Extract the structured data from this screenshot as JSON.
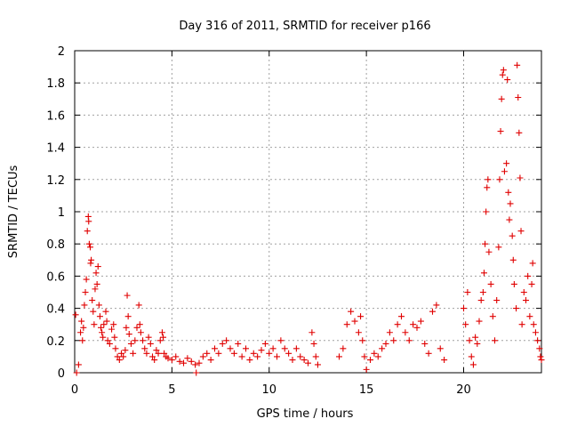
{
  "chart_data": {
    "type": "scatter",
    "title": "Day 316 of 2011, SRMTID for receiver p166",
    "xlabel": "GPS time / hours",
    "ylabel": "SRMTID / TECUs",
    "xlim": [
      0,
      24
    ],
    "ylim": [
      0,
      2
    ],
    "xticks": [
      0,
      5,
      10,
      15,
      20
    ],
    "yticks": [
      0,
      0.2,
      0.4,
      0.6,
      0.8,
      1,
      1.2,
      1.4,
      1.6,
      1.8,
      2
    ],
    "grid": true,
    "marker": "plus",
    "color": "#e00000",
    "series": [
      {
        "name": "SRMTID",
        "points": [
          [
            0.05,
            0.36
          ],
          [
            0.1,
            0.0
          ],
          [
            0.2,
            0.05
          ],
          [
            0.3,
            0.25
          ],
          [
            0.35,
            0.32
          ],
          [
            0.4,
            0.2
          ],
          [
            0.45,
            0.28
          ],
          [
            0.5,
            0.42
          ],
          [
            0.55,
            0.5
          ],
          [
            0.6,
            0.58
          ],
          [
            0.65,
            0.88
          ],
          [
            0.7,
            0.97
          ],
          [
            0.72,
            0.94
          ],
          [
            0.75,
            0.8
          ],
          [
            0.8,
            0.78
          ],
          [
            0.82,
            0.68
          ],
          [
            0.85,
            0.7
          ],
          [
            0.9,
            0.45
          ],
          [
            0.95,
            0.38
          ],
          [
            1.0,
            0.3
          ],
          [
            1.05,
            0.52
          ],
          [
            1.1,
            0.62
          ],
          [
            1.15,
            0.55
          ],
          [
            1.2,
            0.66
          ],
          [
            1.25,
            0.42
          ],
          [
            1.3,
            0.35
          ],
          [
            1.35,
            0.28
          ],
          [
            1.4,
            0.25
          ],
          [
            1.45,
            0.22
          ],
          [
            1.5,
            0.3
          ],
          [
            1.6,
            0.38
          ],
          [
            1.65,
            0.32
          ],
          [
            1.7,
            0.2
          ],
          [
            1.8,
            0.18
          ],
          [
            1.9,
            0.27
          ],
          [
            2.0,
            0.3
          ],
          [
            2.05,
            0.22
          ],
          [
            2.1,
            0.15
          ],
          [
            2.2,
            0.1
          ],
          [
            2.3,
            0.08
          ],
          [
            2.4,
            0.12
          ],
          [
            2.5,
            0.1
          ],
          [
            2.6,
            0.14
          ],
          [
            2.65,
            0.28
          ],
          [
            2.7,
            0.48
          ],
          [
            2.75,
            0.35
          ],
          [
            2.8,
            0.24
          ],
          [
            2.9,
            0.18
          ],
          [
            3.0,
            0.12
          ],
          [
            3.1,
            0.2
          ],
          [
            3.2,
            0.28
          ],
          [
            3.3,
            0.42
          ],
          [
            3.35,
            0.3
          ],
          [
            3.4,
            0.25
          ],
          [
            3.5,
            0.2
          ],
          [
            3.6,
            0.15
          ],
          [
            3.7,
            0.12
          ],
          [
            3.8,
            0.22
          ],
          [
            3.9,
            0.18
          ],
          [
            4.0,
            0.1
          ],
          [
            4.1,
            0.08
          ],
          [
            4.2,
            0.14
          ],
          [
            4.3,
            0.12
          ],
          [
            4.4,
            0.2
          ],
          [
            4.5,
            0.25
          ],
          [
            4.55,
            0.22
          ],
          [
            4.6,
            0.12
          ],
          [
            4.7,
            0.1
          ],
          [
            4.8,
            0.09
          ],
          [
            5.0,
            0.08
          ],
          [
            5.2,
            0.1
          ],
          [
            5.4,
            0.07
          ],
          [
            5.6,
            0.06
          ],
          [
            5.8,
            0.09
          ],
          [
            6.0,
            0.07
          ],
          [
            6.2,
            0.05
          ],
          [
            6.25,
            0.0
          ],
          [
            6.4,
            0.06
          ],
          [
            6.6,
            0.1
          ],
          [
            6.8,
            0.12
          ],
          [
            7.0,
            0.08
          ],
          [
            7.2,
            0.15
          ],
          [
            7.4,
            0.12
          ],
          [
            7.6,
            0.18
          ],
          [
            7.8,
            0.2
          ],
          [
            8.0,
            0.15
          ],
          [
            8.2,
            0.12
          ],
          [
            8.4,
            0.18
          ],
          [
            8.6,
            0.1
          ],
          [
            8.8,
            0.15
          ],
          [
            9.0,
            0.08
          ],
          [
            9.2,
            0.12
          ],
          [
            9.4,
            0.1
          ],
          [
            9.6,
            0.14
          ],
          [
            9.8,
            0.18
          ],
          [
            10.0,
            0.12
          ],
          [
            10.2,
            0.15
          ],
          [
            10.4,
            0.1
          ],
          [
            10.6,
            0.2
          ],
          [
            10.8,
            0.15
          ],
          [
            11.0,
            0.12
          ],
          [
            11.2,
            0.08
          ],
          [
            11.4,
            0.15
          ],
          [
            11.6,
            0.1
          ],
          [
            11.8,
            0.08
          ],
          [
            12.0,
            0.06
          ],
          [
            12.2,
            0.25
          ],
          [
            12.3,
            0.18
          ],
          [
            12.4,
            0.1
          ],
          [
            12.5,
            0.05
          ],
          [
            13.6,
            0.1
          ],
          [
            13.8,
            0.15
          ],
          [
            14.0,
            0.3
          ],
          [
            14.2,
            0.38
          ],
          [
            14.4,
            0.32
          ],
          [
            14.6,
            0.25
          ],
          [
            14.7,
            0.35
          ],
          [
            14.8,
            0.2
          ],
          [
            14.9,
            0.1
          ],
          [
            15.0,
            0.02
          ],
          [
            15.2,
            0.08
          ],
          [
            15.4,
            0.12
          ],
          [
            15.6,
            0.1
          ],
          [
            15.8,
            0.15
          ],
          [
            16.0,
            0.18
          ],
          [
            16.2,
            0.25
          ],
          [
            16.4,
            0.2
          ],
          [
            16.6,
            0.3
          ],
          [
            16.8,
            0.35
          ],
          [
            17.0,
            0.25
          ],
          [
            17.2,
            0.2
          ],
          [
            17.4,
            0.3
          ],
          [
            17.6,
            0.28
          ],
          [
            17.8,
            0.32
          ],
          [
            18.0,
            0.18
          ],
          [
            18.2,
            0.12
          ],
          [
            18.4,
            0.38
          ],
          [
            18.6,
            0.42
          ],
          [
            18.8,
            0.15
          ],
          [
            19.0,
            0.08
          ],
          [
            20.0,
            0.4
          ],
          [
            20.1,
            0.3
          ],
          [
            20.2,
            0.5
          ],
          [
            20.3,
            0.2
          ],
          [
            20.4,
            0.1
          ],
          [
            20.5,
            0.05
          ],
          [
            20.6,
            0.22
          ],
          [
            20.7,
            0.18
          ],
          [
            20.8,
            0.32
          ],
          [
            20.9,
            0.45
          ],
          [
            21.0,
            0.5
          ],
          [
            21.05,
            0.62
          ],
          [
            21.1,
            0.8
          ],
          [
            21.15,
            1.0
          ],
          [
            21.2,
            1.15
          ],
          [
            21.25,
            1.2
          ],
          [
            21.3,
            0.75
          ],
          [
            21.4,
            0.55
          ],
          [
            21.5,
            0.35
          ],
          [
            21.6,
            0.2
          ],
          [
            21.7,
            0.45
          ],
          [
            21.8,
            0.78
          ],
          [
            21.85,
            1.2
          ],
          [
            21.9,
            1.5
          ],
          [
            21.95,
            1.7
          ],
          [
            22.0,
            1.85
          ],
          [
            22.05,
            1.88
          ],
          [
            22.1,
            1.25
          ],
          [
            22.2,
            1.3
          ],
          [
            22.25,
            1.82
          ],
          [
            22.3,
            1.12
          ],
          [
            22.35,
            0.95
          ],
          [
            22.4,
            1.05
          ],
          [
            22.5,
            0.85
          ],
          [
            22.55,
            0.7
          ],
          [
            22.6,
            0.55
          ],
          [
            22.7,
            0.4
          ],
          [
            22.75,
            1.91
          ],
          [
            22.8,
            1.71
          ],
          [
            22.85,
            1.49
          ],
          [
            22.9,
            1.21
          ],
          [
            22.95,
            0.88
          ],
          [
            23.0,
            0.3
          ],
          [
            23.1,
            0.5
          ],
          [
            23.2,
            0.45
          ],
          [
            23.3,
            0.6
          ],
          [
            23.4,
            0.35
          ],
          [
            23.5,
            0.55
          ],
          [
            23.55,
            0.68
          ],
          [
            23.6,
            0.3
          ],
          [
            23.7,
            0.25
          ],
          [
            23.8,
            0.2
          ],
          [
            23.9,
            0.15
          ],
          [
            23.95,
            0.1
          ],
          [
            24.0,
            0.08
          ]
        ]
      }
    ]
  }
}
